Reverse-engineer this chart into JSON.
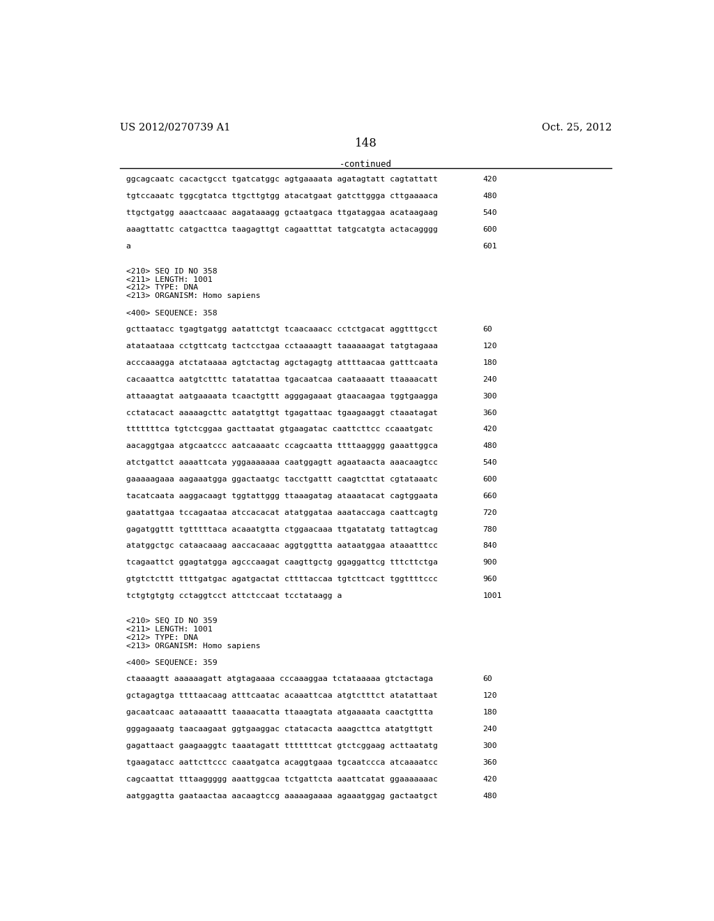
{
  "header_left": "US 2012/0270739 A1",
  "header_right": "Oct. 25, 2012",
  "page_number": "148",
  "continued_label": "-continued",
  "background_color": "#ffffff",
  "text_color": "#000000",
  "lines": [
    {
      "text": "ggcagcaatc cacactgcct tgatcatggc agtgaaaata agatagtatt cagtattatt",
      "num": "420",
      "type": "seq"
    },
    {
      "text": "",
      "num": "",
      "type": "blank"
    },
    {
      "text": "tgtccaaatc tggcgtatca ttgcttgtgg atacatgaat gatcttggga cttgaaaaca",
      "num": "480",
      "type": "seq"
    },
    {
      "text": "",
      "num": "",
      "type": "blank"
    },
    {
      "text": "ttgctgatgg aaactcaaac aagataaagg gctaatgaca ttgataggaa acataagaag",
      "num": "540",
      "type": "seq"
    },
    {
      "text": "",
      "num": "",
      "type": "blank"
    },
    {
      "text": "aaagttattc catgacttca taagagttgt cagaatttat tatgcatgta actacagggg",
      "num": "600",
      "type": "seq"
    },
    {
      "text": "",
      "num": "",
      "type": "blank"
    },
    {
      "text": "a",
      "num": "601",
      "type": "seq"
    },
    {
      "text": "",
      "num": "",
      "type": "blank"
    },
    {
      "text": "",
      "num": "",
      "type": "blank"
    },
    {
      "text": "<210> SEQ ID NO 358",
      "num": "",
      "type": "meta"
    },
    {
      "text": "<211> LENGTH: 1001",
      "num": "",
      "type": "meta"
    },
    {
      "text": "<212> TYPE: DNA",
      "num": "",
      "type": "meta"
    },
    {
      "text": "<213> ORGANISM: Homo sapiens",
      "num": "",
      "type": "meta"
    },
    {
      "text": "",
      "num": "",
      "type": "blank"
    },
    {
      "text": "<400> SEQUENCE: 358",
      "num": "",
      "type": "meta"
    },
    {
      "text": "",
      "num": "",
      "type": "blank"
    },
    {
      "text": "gcttaatacc tgagtgatgg aatattctgt tcaacaaacc cctctgacat aggtttgcct",
      "num": "60",
      "type": "seq"
    },
    {
      "text": "",
      "num": "",
      "type": "blank"
    },
    {
      "text": "atataataaa cctgttcatg tactcctgaa cctaaaagtt taaaaaagat tatgtagaaa",
      "num": "120",
      "type": "seq"
    },
    {
      "text": "",
      "num": "",
      "type": "blank"
    },
    {
      "text": "acccaaagga atctataaaa agtctactag agctagagtg attttaacaa gatttcaata",
      "num": "180",
      "type": "seq"
    },
    {
      "text": "",
      "num": "",
      "type": "blank"
    },
    {
      "text": "cacaaattca aatgtctttc tatatattaa tgacaatcaa caataaaatt ttaaaacatt",
      "num": "240",
      "type": "seq"
    },
    {
      "text": "",
      "num": "",
      "type": "blank"
    },
    {
      "text": "attaaagtat aatgaaaata tcaactgttt agggagaaat gtaacaagaa tggtgaagga",
      "num": "300",
      "type": "seq"
    },
    {
      "text": "",
      "num": "",
      "type": "blank"
    },
    {
      "text": "cctatacact aaaaagcttc aatatgttgt tgagattaac tgaagaaggt ctaaatagat",
      "num": "360",
      "type": "seq"
    },
    {
      "text": "",
      "num": "",
      "type": "blank"
    },
    {
      "text": "tttttttca tgtctcggaa gacttaatat gtgaagatac caattcttcc ccaaatgatc",
      "num": "420",
      "type": "seq"
    },
    {
      "text": "",
      "num": "",
      "type": "blank"
    },
    {
      "text": "aacaggtgaa atgcaatccc aatcaaaatc ccagcaatta ttttaagggg gaaattggca",
      "num": "480",
      "type": "seq"
    },
    {
      "text": "",
      "num": "",
      "type": "blank"
    },
    {
      "text": "atctgattct aaaattcata yggaaaaaaa caatggagtt agaataacta aaacaagtcc",
      "num": "540",
      "type": "seq"
    },
    {
      "text": "",
      "num": "",
      "type": "blank"
    },
    {
      "text": "gaaaaagaaa aagaaatgga ggactaatgc tacctgattt caagtcttat cgtataaatc",
      "num": "600",
      "type": "seq"
    },
    {
      "text": "",
      "num": "",
      "type": "blank"
    },
    {
      "text": "tacatcaata aaggacaagt tggtattggg ttaaagatag ataaatacat cagtggaata",
      "num": "660",
      "type": "seq"
    },
    {
      "text": "",
      "num": "",
      "type": "blank"
    },
    {
      "text": "gaatattgaa tccagaataa atccacacat atatggataa aaataccaga caattcagtg",
      "num": "720",
      "type": "seq"
    },
    {
      "text": "",
      "num": "",
      "type": "blank"
    },
    {
      "text": "gagatggttt tgtttttaca acaaatgtta ctggaacaaa ttgatatatg tattagtcag",
      "num": "780",
      "type": "seq"
    },
    {
      "text": "",
      "num": "",
      "type": "blank"
    },
    {
      "text": "atatggctgc cataacaaag aaccacaaac aggtggttta aataatggaa ataaatttcc",
      "num": "840",
      "type": "seq"
    },
    {
      "text": "",
      "num": "",
      "type": "blank"
    },
    {
      "text": "tcagaattct ggagtatgga agcccaagat caagttgctg ggaggattcg tttcttctga",
      "num": "900",
      "type": "seq"
    },
    {
      "text": "",
      "num": "",
      "type": "blank"
    },
    {
      "text": "gtgtctcttt ttttgatgac agatgactat cttttaccaa tgtcttcact tggttttccc",
      "num": "960",
      "type": "seq"
    },
    {
      "text": "",
      "num": "",
      "type": "blank"
    },
    {
      "text": "tctgtgtgtg cctaggtcct attctccaat tcctataagg a",
      "num": "1001",
      "type": "seq"
    },
    {
      "text": "",
      "num": "",
      "type": "blank"
    },
    {
      "text": "",
      "num": "",
      "type": "blank"
    },
    {
      "text": "<210> SEQ ID NO 359",
      "num": "",
      "type": "meta"
    },
    {
      "text": "<211> LENGTH: 1001",
      "num": "",
      "type": "meta"
    },
    {
      "text": "<212> TYPE: DNA",
      "num": "",
      "type": "meta"
    },
    {
      "text": "<213> ORGANISM: Homo sapiens",
      "num": "",
      "type": "meta"
    },
    {
      "text": "",
      "num": "",
      "type": "blank"
    },
    {
      "text": "<400> SEQUENCE: 359",
      "num": "",
      "type": "meta"
    },
    {
      "text": "",
      "num": "",
      "type": "blank"
    },
    {
      "text": "ctaaaagtt aaaaaagatt atgtagaaaa cccaaaggaa tctataaaaa gtctactaga",
      "num": "60",
      "type": "seq"
    },
    {
      "text": "",
      "num": "",
      "type": "blank"
    },
    {
      "text": "gctagagtga ttttaacaag atttcaatac acaaattcaa atgtctttct atatattaat",
      "num": "120",
      "type": "seq"
    },
    {
      "text": "",
      "num": "",
      "type": "blank"
    },
    {
      "text": "gacaatcaac aataaaattt taaaacatta ttaaagtata atgaaaata caactgttta",
      "num": "180",
      "type": "seq"
    },
    {
      "text": "",
      "num": "",
      "type": "blank"
    },
    {
      "text": "gggagaaatg taacaagaat ggtgaaggac ctatacacta aaagcttca atatgttgtt",
      "num": "240",
      "type": "seq"
    },
    {
      "text": "",
      "num": "",
      "type": "blank"
    },
    {
      "text": "gagattaact gaagaaggtc taaatagatt tttttttcat gtctcggaag acttaatatg",
      "num": "300",
      "type": "seq"
    },
    {
      "text": "",
      "num": "",
      "type": "blank"
    },
    {
      "text": "tgaagatacc aattcttccc caaatgatca acaggtgaaa tgcaatccca atcaaaatcc",
      "num": "360",
      "type": "seq"
    },
    {
      "text": "",
      "num": "",
      "type": "blank"
    },
    {
      "text": "cagcaattat tttaaggggg aaattggcaa tctgattcta aaattcatat ggaaaaaaac",
      "num": "420",
      "type": "seq"
    },
    {
      "text": "",
      "num": "",
      "type": "blank"
    },
    {
      "text": "aatggagtta gaataactaa aacaagtccg aaaaagaaaa agaaatggag gactaatgct",
      "num": "480",
      "type": "seq"
    }
  ]
}
